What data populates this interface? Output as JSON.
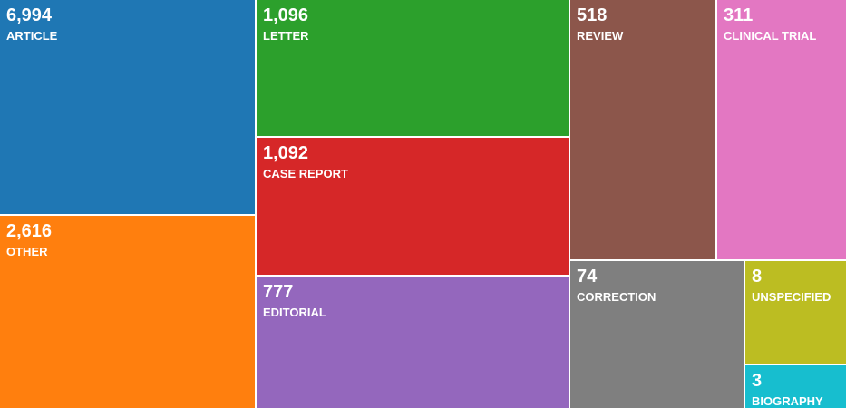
{
  "chart_data": {
    "type": "treemap",
    "items": [
      {
        "label": "ARTICLE",
        "value": 6994,
        "display": "6,994",
        "color": "#1f77b4"
      },
      {
        "label": "OTHER",
        "value": 2616,
        "display": "2,616",
        "color": "#ff7f0e"
      },
      {
        "label": "LETTER",
        "value": 1096,
        "display": "1,096",
        "color": "#2ca02c"
      },
      {
        "label": "CASE REPORT",
        "value": 1092,
        "display": "1,092",
        "color": "#d62728"
      },
      {
        "label": "EDITORIAL",
        "value": 777,
        "display": "777",
        "color": "#9467bd"
      },
      {
        "label": "REVIEW",
        "value": 518,
        "display": "518",
        "color": "#8c564b"
      },
      {
        "label": "CLINICAL TRIAL",
        "value": 311,
        "display": "311",
        "color": "#e377c2"
      },
      {
        "label": "CORRECTION",
        "value": 74,
        "display": "74",
        "color": "#7f7f7f"
      },
      {
        "label": "UNSPECIFIED",
        "value": 8,
        "display": "8",
        "color": "#bcbd22"
      },
      {
        "label": "BIOGRAPHY",
        "value": 3,
        "display": "3",
        "color": "#17becf"
      }
    ]
  }
}
